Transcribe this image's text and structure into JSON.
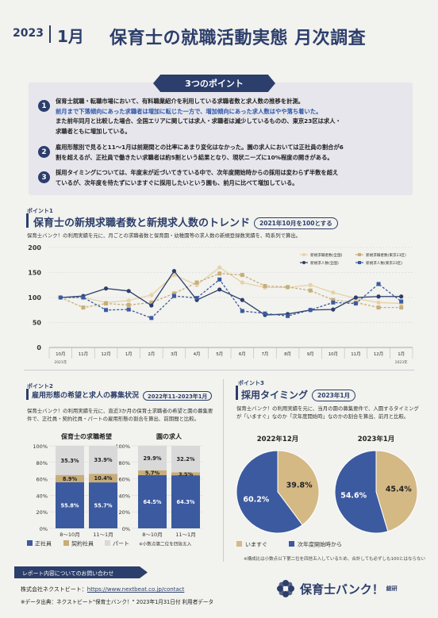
{
  "header": {
    "year": "2023",
    "month": "1月",
    "title": "保育士の就職活動実態 月次調査"
  },
  "points": {
    "heading": "3つのポイント",
    "items": [
      {
        "num": "1",
        "lines": [
          "保育士就職・転職市場において、有料職業紹介を利用している求職者数と求人数の推移を計測。",
          "前月まで下落傾向にあった求職者は増加に転じた一方で、増加傾向にあった求人数はやや落ち着いた。",
          "また前年同月と比較した場合、全国エリアに関しては求人・求職者は減少しているものの、東京23区は求人・",
          "求職者ともに増加している。"
        ]
      },
      {
        "num": "2",
        "lines": [
          "雇用形態別で見ると11～1月は前期間との比率にあまり変化はなかった。園の求人においては正社員の割合が6",
          "割を超えるが、正社員で働きたい求職者は約5割という結果となり、現状ニーズに10%程度の開きがある。"
        ]
      },
      {
        "num": "3",
        "lines": [
          "採用タイミングについては、年度末が近づいてきている中で、次年度開始時からの採用は変わらず半数を超え",
          "ているが、次年度を待たずにいますぐに採用したいという園も、前月に比べて増加している。"
        ]
      }
    ]
  },
  "section1": {
    "tag": "ポイント1",
    "title": "保育士の新規求職者数と新規求人数のトレンド",
    "pill": "2021年10月を100とする",
    "desc": "保育士バンク！の利用実績を元に、月ごとの求職者数と保育園・幼稚園等の求人数の新規登録数実績を、時系列で算出。"
  },
  "section2": {
    "tag": "ポイント2",
    "title": "雇用形態の希望と求人の募集状況",
    "pill": "2022年11-2023年1月",
    "desc": "保育士バンク！の利用実績を元に、直近3か月の保育士求職者の希望と園の募集要件で、正社員・契約社員・パートの雇用形態の割合を算出、前期間と比較。"
  },
  "section3": {
    "tag": "ポイント3",
    "title": "採用タイミング",
    "pill": "2023年1月",
    "desc": "保育士バンク！の利用実績を元に、当月の園の募集要件で、入園するタイミングが「いますぐ」なのか「次年度開始時」なのかの割合を算出、前月と比較。"
  },
  "note": "※構成比は小数点以下第二位を四捨五入しているため、合計しても必ずしも100とはならない",
  "footer": {
    "contact": "レポート内容についてのお問い合わせ",
    "company_label": "株式会社ネクストビート：",
    "company_url": "https://www.nextbeat.co.jp/contact",
    "source": "※データ出典：ネクストビート\"保育士バンク！\" 2023年1月31日付 利用者データ",
    "logo_text": "保育士バンク！",
    "logo_sub": "総研"
  },
  "colors": {
    "navy": "#2c3e6b",
    "gold": "#c8ad78",
    "lightgold": "#e6d2a6",
    "blue": "#3b5aa0",
    "gray": "#d9d9d9"
  },
  "chart_data": [
    {
      "type": "line",
      "categories": [
        "10月",
        "11月",
        "12月",
        "1月",
        "2月",
        "3月",
        "4月",
        "5月",
        "6月",
        "7月",
        "8月",
        "9月",
        "10月",
        "11月",
        "12月",
        "1月"
      ],
      "year_labels": [
        "2021年",
        "2023年"
      ],
      "ylim": [
        0,
        200
      ],
      "yticks": [
        0,
        50,
        100,
        150,
        200
      ],
      "series": [
        {
          "name": "新規求職者数(全国)",
          "color": "#e6d2a6",
          "marker": "circle",
          "values": [
            100,
            100,
            90,
            94,
            105,
            145,
            125,
            160,
            130,
            120,
            120,
            125,
            110,
            98,
            90,
            88
          ]
        },
        {
          "name": "新規求職者数(東京23区)",
          "color": "#c8ad78",
          "marker": "square",
          "values": [
            100,
            80,
            88,
            85,
            90,
            108,
            130,
            148,
            145,
            123,
            121,
            114,
            95,
            90,
            80,
            80
          ]
        },
        {
          "name": "新規求人数(全国)",
          "color": "#2c3e6b",
          "marker": "circle",
          "values": [
            100,
            103,
            118,
            113,
            84,
            153,
            95,
            116,
            95,
            65,
            67,
            75,
            76,
            100,
            102,
            102
          ]
        },
        {
          "name": "新規求人数(東京23区)",
          "color": "#3b5aa0",
          "marker": "square",
          "values": [
            100,
            100,
            75,
            76,
            59,
            103,
            99,
            136,
            73,
            68,
            63,
            75,
            90,
            88,
            127,
            92
          ]
        }
      ]
    },
    {
      "type": "bar",
      "stacked": true,
      "groups": [
        {
          "title": "保育士の求職希望",
          "categories": [
            "8～10月",
            "11～1月"
          ],
          "series": [
            {
              "name": "正社員",
              "color": "#3b5aa0",
              "values": [
                55.8,
                55.7
              ]
            },
            {
              "name": "契約社員",
              "color": "#c8ad78",
              "values": [
                8.9,
                10.4
              ]
            },
            {
              "name": "パート",
              "color": "#d9d9d9",
              "values": [
                35.3,
                33.9
              ]
            }
          ]
        },
        {
          "title": "園の求人",
          "categories": [
            "8～10月",
            "11～1月"
          ],
          "series": [
            {
              "name": "正社員",
              "color": "#3b5aa0",
              "values": [
                64.5,
                64.3
              ]
            },
            {
              "name": "契約社員",
              "color": "#c8ad78",
              "values": [
                5.7,
                3.5
              ]
            },
            {
              "name": "パート",
              "color": "#d9d9d9",
              "values": [
                29.9,
                32.2
              ]
            }
          ]
        }
      ],
      "ylim": [
        0,
        100
      ],
      "yticks": [
        "0%",
        "20%",
        "40%",
        "60%",
        "80%",
        "100%"
      ],
      "legend": [
        "正社員",
        "契約社員",
        "パート"
      ],
      "footnote": "※小数点第二位を四捨五入"
    },
    {
      "type": "pie",
      "charts": [
        {
          "title": "2022年12月",
          "slices": [
            {
              "label": "いますぐ",
              "value": 39.8,
              "color": "#d4b984"
            },
            {
              "label": "次年度開始時から",
              "value": 60.2,
              "color": "#3b5aa0"
            }
          ]
        },
        {
          "title": "2023年1月",
          "slices": [
            {
              "label": "いますぐ",
              "value": 45.4,
              "color": "#d4b984"
            },
            {
              "label": "次年度開始時から",
              "value": 54.6,
              "color": "#3b5aa0"
            }
          ]
        }
      ],
      "legend": [
        "いますぐ",
        "次年度開始時から"
      ]
    }
  ]
}
